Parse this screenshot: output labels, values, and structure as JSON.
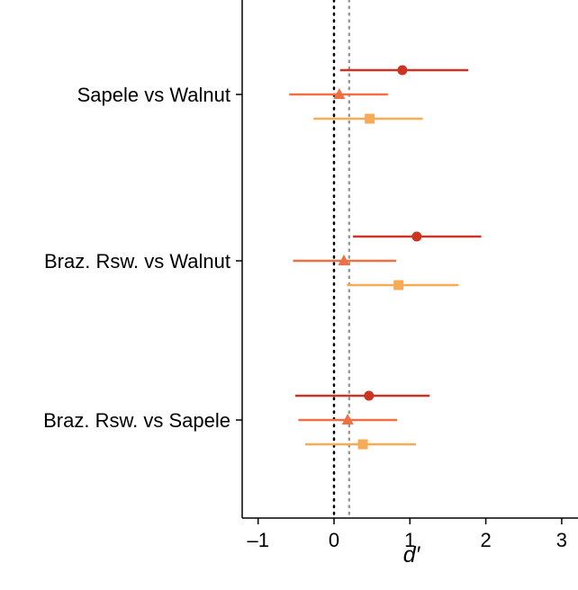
{
  "chart_data": {
    "type": "forest",
    "title": "",
    "xlabel": "d′",
    "ylabel": "",
    "xlim": [
      -1.2,
      3.2
    ],
    "x_ticks": [
      -1,
      0,
      1,
      2,
      3
    ],
    "x_tick_labels": [
      "–1",
      "0",
      "1",
      "2",
      "3"
    ],
    "reference_lines": [
      {
        "x": 0,
        "style": "dotted",
        "color": "#000000"
      },
      {
        "x": 0.2,
        "style": "dotted",
        "color": "#999999"
      }
    ],
    "categories": [
      "Sapele vs Walnut",
      "Braz. Rsw. vs Walnut",
      "Braz. Rsw. vs Sapele"
    ],
    "series": [
      {
        "marker": "circle",
        "color": "#cc3322",
        "points": [
          {
            "estimate": 0.9,
            "low": 0.08,
            "high": 1.77
          },
          {
            "estimate": 1.09,
            "low": 0.25,
            "high": 1.94
          },
          {
            "estimate": 0.46,
            "low": -0.51,
            "high": 1.26
          }
        ]
      },
      {
        "marker": "triangle",
        "color": "#ee7044",
        "points": [
          {
            "estimate": 0.07,
            "low": -0.59,
            "high": 0.71
          },
          {
            "estimate": 0.13,
            "low": -0.54,
            "high": 0.82
          },
          {
            "estimate": 0.18,
            "low": -0.47,
            "high": 0.83
          }
        ]
      },
      {
        "marker": "square",
        "color": "#f8aa55",
        "points": [
          {
            "estimate": 0.47,
            "low": -0.27,
            "high": 1.17
          },
          {
            "estimate": 0.85,
            "low": 0.17,
            "high": 1.64
          },
          {
            "estimate": 0.38,
            "low": -0.38,
            "high": 1.08
          }
        ]
      }
    ],
    "grid": false,
    "legend": "none"
  }
}
